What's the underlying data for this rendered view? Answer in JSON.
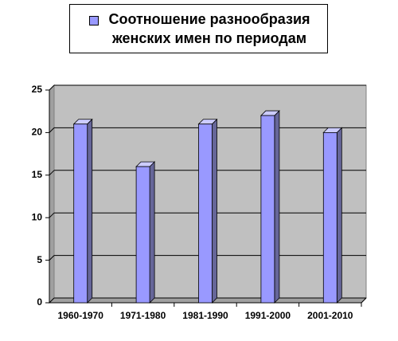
{
  "chart_data": {
    "type": "bar",
    "categories": [
      "1960-1970",
      "1971-1980",
      "1981-1990",
      "1991-2000",
      "2001-2010"
    ],
    "series": [
      {
        "name": "Соотношение разнообразия женских имен по периодам",
        "color": "#9999ff",
        "values": [
          21,
          16,
          21,
          22,
          20
        ]
      }
    ],
    "ylim": [
      0,
      25
    ],
    "yticks": [
      0,
      5,
      10,
      15,
      20,
      25
    ],
    "grid": true,
    "legend": "top"
  }
}
